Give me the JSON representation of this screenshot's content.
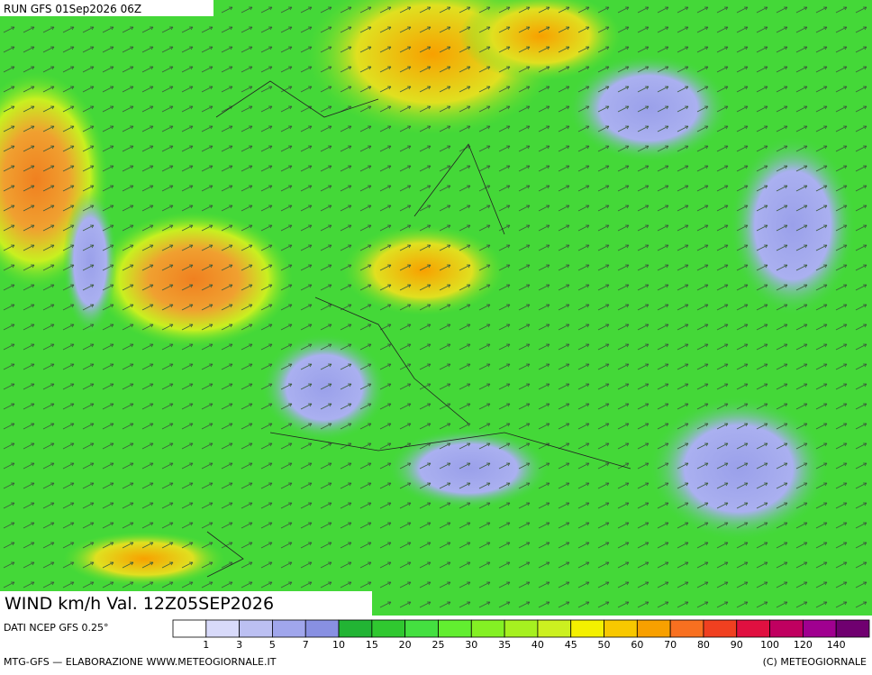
{
  "header": {
    "run": "RUN GFS 01Sep2026 06Z"
  },
  "field_label": "WIND km/h Val. 12Z05SEP2026",
  "legend": {
    "source": "DATI NCEP GFS 0.25°",
    "ticks": [
      1,
      3,
      5,
      7,
      10,
      15,
      20,
      25,
      30,
      35,
      40,
      45,
      50,
      60,
      70,
      80,
      90,
      100,
      120,
      140
    ],
    "colors": [
      "#ffffff",
      "#d8dafa",
      "#bcc0f2",
      "#a0a6ec",
      "#8890e2",
      "#22b434",
      "#30c830",
      "#44e040",
      "#62ee30",
      "#84f024",
      "#a6f020",
      "#ccf020",
      "#f4f000",
      "#f8c800",
      "#f8a000",
      "#f87020",
      "#f04020",
      "#e01040",
      "#c00060",
      "#a00090",
      "#700070"
    ]
  },
  "footer": {
    "left": "MTG-GFS — ELABORAZIONE WWW.METEOGIORNALE.IT",
    "right": "(C) METEOGIORNALE"
  }
}
